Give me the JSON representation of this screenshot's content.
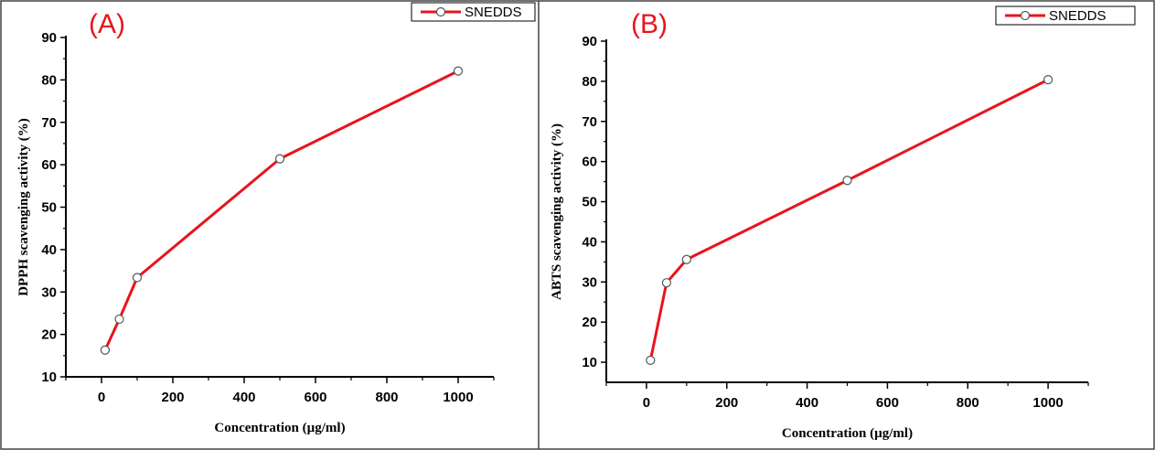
{
  "figure": {
    "panels": [
      {
        "letter": "(A)"
      },
      {
        "letter": "(B)"
      }
    ]
  },
  "chart_data": [
    {
      "type": "line",
      "panel": "(A)",
      "xlabel": "Concentration (µg/ml)",
      "ylabel": "DPPH scavenging activity (%)",
      "xlim": [
        -100,
        1100
      ],
      "ylim": [
        10,
        90
      ],
      "xticks": [
        0,
        200,
        400,
        600,
        800,
        1000
      ],
      "yticks": [
        10,
        20,
        30,
        40,
        50,
        60,
        70,
        80,
        90
      ],
      "legend": "top-right",
      "series": [
        {
          "name": "SNEDDS",
          "color": "#e8141c",
          "marker": "open-circle",
          "x": [
            10,
            50,
            100,
            500,
            1000
          ],
          "y": [
            16.3,
            23.6,
            33.4,
            61.4,
            82.1
          ]
        }
      ]
    },
    {
      "type": "line",
      "panel": "(B)",
      "xlabel": "Concentration (µg/ml)",
      "ylabel": "ABTS scavenging activity (%)",
      "xlim": [
        -100,
        1100
      ],
      "ylim": [
        5,
        90
      ],
      "xticks": [
        0,
        200,
        400,
        600,
        800,
        1000
      ],
      "yticks": [
        10,
        20,
        30,
        40,
        50,
        60,
        70,
        80,
        90
      ],
      "legend": "top-right",
      "series": [
        {
          "name": "SNEDDS",
          "color": "#e8141c",
          "marker": "open-circle",
          "x": [
            10,
            50,
            100,
            500,
            1000
          ],
          "y": [
            10.5,
            29.8,
            35.6,
            55.3,
            80.4
          ]
        }
      ]
    }
  ]
}
